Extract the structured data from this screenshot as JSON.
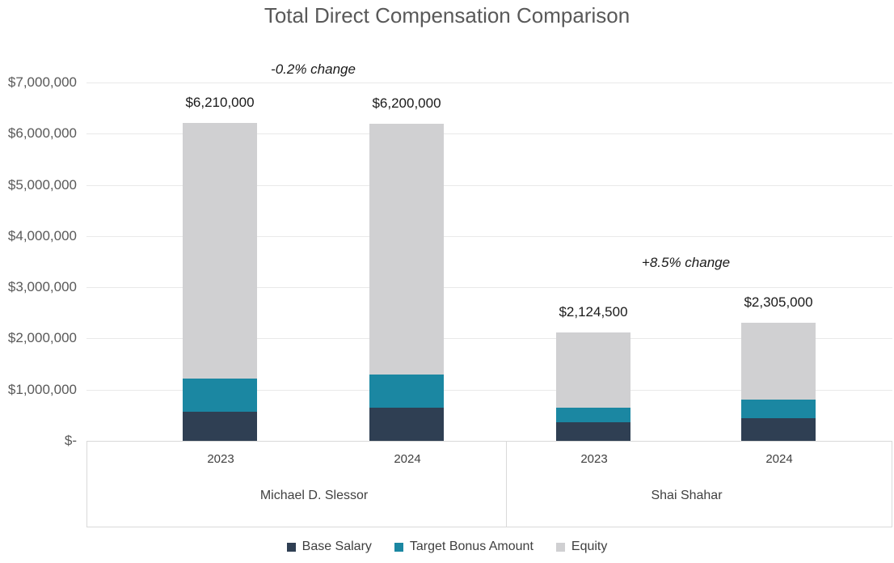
{
  "title": "Total Direct Compensation Comparison",
  "chart_data": {
    "type": "bar",
    "stacked": true,
    "title": "Total Direct Compensation Comparison",
    "xlabel": "",
    "ylabel": "",
    "ylim": [
      0,
      7000000
    ],
    "grid": true,
    "legend_position": "bottom",
    "y_ticks": [
      {
        "value": 0,
        "label": "$-"
      },
      {
        "value": 1000000,
        "label": "$1,000,000"
      },
      {
        "value": 2000000,
        "label": "$2,000,000"
      },
      {
        "value": 3000000,
        "label": "$3,000,000"
      },
      {
        "value": 4000000,
        "label": "$4,000,000"
      },
      {
        "value": 5000000,
        "label": "$5,000,000"
      },
      {
        "value": 6000000,
        "label": "$6,000,000"
      },
      {
        "value": 7000000,
        "label": "$7,000,000"
      }
    ],
    "series": [
      {
        "name": "Base Salary",
        "color": "#2f3f53"
      },
      {
        "name": "Target Bonus Amount",
        "color": "#1b87a2"
      },
      {
        "name": "Equity",
        "color": "#d0d0d2"
      }
    ],
    "groups": [
      {
        "name": "Michael D. Slessor",
        "annotation": "-0.2% change",
        "bars": [
          {
            "category": "2023",
            "total": 6210000,
            "total_label": "$6,210,000",
            "values": [
              575000,
              635000,
              5000000
            ]
          },
          {
            "category": "2024",
            "total": 6200000,
            "total_label": "$6,200,000",
            "values": [
              650000,
              650000,
              4900000
            ]
          }
        ]
      },
      {
        "name": "Shai Shahar",
        "annotation": "+8.5% change",
        "bars": [
          {
            "category": "2023",
            "total": 2124500,
            "total_label": "$2,124,500",
            "values": [
              360000,
              288000,
              1476500
            ]
          },
          {
            "category": "2024",
            "total": 2305000,
            "total_label": "$2,305,000",
            "values": [
              450000,
              360000,
              1495000
            ]
          }
        ]
      }
    ]
  },
  "colors": {
    "title_text": "#595959",
    "axis_text": "#595959",
    "data_label_text": "#1a1a1a",
    "category_text": "#404040",
    "gridline": "#e9e9e9",
    "box_border": "#d9d9d9",
    "base_salary": "#2f3f53",
    "target_bonus": "#1b87a2",
    "equity": "#d0d0d2"
  }
}
